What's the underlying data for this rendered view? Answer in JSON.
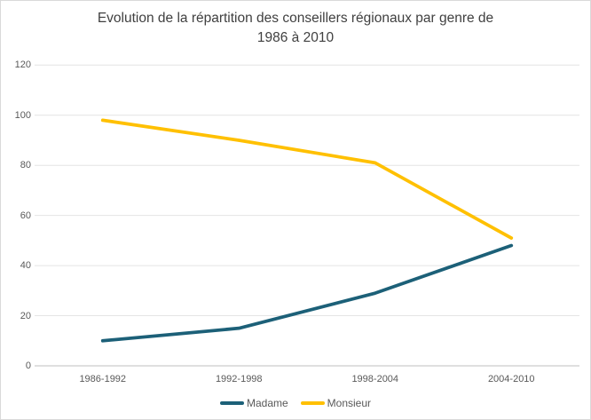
{
  "chart_data": {
    "type": "line",
    "title": "Evolution de la répartition des conseillers régionaux par genre de 1986 à 2010",
    "title_lines": [
      "Evolution de la répartition des conseillers régionaux par genre de",
      "1986 à 2010"
    ],
    "categories": [
      "1986-1992",
      "1992-1998",
      "1998-2004",
      "2004-2010"
    ],
    "series": [
      {
        "name": "Madame",
        "color": "#1C6078",
        "values": [
          10,
          15,
          29,
          48
        ]
      },
      {
        "name": "Monsieur",
        "color": "#FFC000",
        "values": [
          98,
          90,
          81,
          51
        ]
      }
    ],
    "ylim": [
      0,
      120
    ],
    "yticks": [
      0,
      20,
      40,
      60,
      80,
      100,
      120
    ],
    "grid": true,
    "legend_position": "bottom",
    "colors": {
      "gridline": "#e4e4e4",
      "axis_line": "#bfbfbf",
      "tick_label": "#595959",
      "title": "#404040",
      "legend_text": "#595959",
      "background": "#ffffff",
      "border": "#d9d9d9"
    }
  }
}
